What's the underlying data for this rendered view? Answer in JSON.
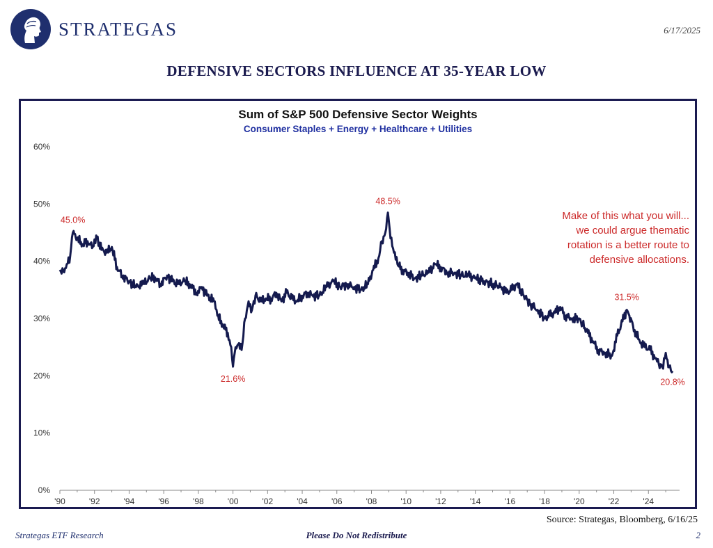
{
  "header": {
    "brand": "STRATEGAS",
    "date": "6/17/2025",
    "headline": "DEFENSIVE SECTORS INFLUENCE AT 35-YEAR LOW"
  },
  "footer": {
    "source": "Source: Strategas, Bloomberg, 6/16/25",
    "left": "Strategas ETF Research",
    "center": "Please Do Not Redistribute",
    "page": "2"
  },
  "chart_data": {
    "type": "line",
    "title": "Sum of S&P 500 Defensive Sector Weights",
    "subtitle": "Consumer Staples + Energy + Healthcare + Utilities",
    "xlabel": "",
    "ylabel": "",
    "xlim": [
      1990,
      2025.8
    ],
    "ylim": [
      0,
      60
    ],
    "x_ticks": [
      "'90",
      "'92",
      "'94",
      "'96",
      "'98",
      "'00",
      "'02",
      "'04",
      "'06",
      "'08",
      "'10",
      "'12",
      "'14",
      "'16",
      "'18",
      "'20",
      "'22",
      "'24"
    ],
    "y_ticks": [
      "0%",
      "10%",
      "20%",
      "30%",
      "40%",
      "50%",
      "60%"
    ],
    "grid": false,
    "line_color": "#141a4e",
    "annotation_color": "#cc2a2a",
    "series": [
      {
        "x": [
          1990.0,
          1990.2,
          1990.4,
          1990.6,
          1990.75,
          1991.0,
          1991.3,
          1991.6,
          1991.9,
          1992.1,
          1992.4,
          1992.7,
          1993.0,
          1993.3,
          1993.6,
          1994.0,
          1994.4,
          1994.8,
          1995.2,
          1995.5,
          1995.8,
          1996.2,
          1996.5,
          1996.8,
          1997.2,
          1997.5,
          1997.9,
          1998.2,
          1998.5,
          1998.9,
          1999.1,
          1999.4,
          1999.7,
          1999.9,
          2000.0,
          2000.1,
          2000.3,
          2000.5,
          2000.7,
          2000.9,
          2001.1,
          2001.3,
          2001.6,
          2001.9,
          2002.2,
          2002.5,
          2002.8,
          2003.1,
          2003.4,
          2003.7,
          2004.0,
          2004.3,
          2004.6,
          2005.0,
          2005.4,
          2005.8,
          2006.2,
          2006.6,
          2007.0,
          2007.4,
          2007.8,
          2008.1,
          2008.4,
          2008.6,
          2008.8,
          2008.95,
          2009.1,
          2009.3,
          2009.5,
          2009.8,
          2010.1,
          2010.5,
          2010.9,
          2011.3,
          2011.7,
          2012.0,
          2012.4,
          2012.8,
          2013.2,
          2013.6,
          2014.0,
          2014.5,
          2015.0,
          2015.5,
          2015.8,
          2016.1,
          2016.4,
          2016.8,
          2017.2,
          2017.6,
          2018.0,
          2018.3,
          2018.6,
          2018.9,
          2019.2,
          2019.6,
          2020.0,
          2020.2,
          2020.5,
          2020.8,
          2021.1,
          2021.5,
          2021.9,
          2022.2,
          2022.5,
          2022.75,
          2022.9,
          2023.2,
          2023.5,
          2023.8,
          2024.1,
          2024.4,
          2024.6,
          2024.8,
          2025.0,
          2025.2,
          2025.4
        ],
        "y": [
          38.5,
          38.2,
          39.5,
          41.0,
          45.0,
          44.0,
          43.0,
          43.5,
          42.5,
          44.5,
          42.0,
          41.5,
          42.5,
          39.0,
          37.5,
          36.5,
          35.5,
          36.0,
          37.0,
          37.2,
          36.0,
          37.5,
          36.5,
          36.0,
          36.5,
          36.0,
          34.5,
          35.5,
          34.0,
          33.0,
          30.5,
          29.0,
          27.5,
          25.0,
          21.6,
          24.0,
          25.5,
          24.5,
          30.0,
          33.0,
          31.5,
          34.0,
          33.0,
          33.5,
          33.5,
          34.5,
          33.0,
          34.5,
          33.5,
          33.0,
          34.0,
          34.5,
          34.0,
          34.0,
          35.5,
          36.5,
          35.5,
          36.0,
          35.5,
          35.0,
          36.0,
          38.5,
          40.5,
          43.5,
          45.0,
          48.5,
          44.0,
          41.5,
          39.5,
          38.5,
          38.0,
          37.0,
          37.5,
          38.0,
          39.5,
          39.0,
          38.0,
          38.0,
          37.5,
          37.5,
          37.0,
          36.5,
          36.0,
          35.5,
          34.5,
          35.0,
          36.0,
          34.0,
          32.5,
          31.5,
          30.0,
          30.5,
          31.0,
          32.0,
          30.5,
          30.0,
          30.0,
          29.0,
          27.5,
          26.0,
          24.5,
          24.0,
          23.5,
          27.0,
          29.5,
          31.5,
          30.5,
          28.0,
          26.0,
          25.0,
          24.5,
          23.0,
          22.0,
          21.5,
          24.0,
          21.5,
          20.8
        ]
      }
    ],
    "annotations": [
      {
        "label": "45.0%",
        "x": 1990.75,
        "y": 45.0
      },
      {
        "label": "21.6%",
        "x": 2000.0,
        "y": 21.6
      },
      {
        "label": "48.5%",
        "x": 2008.95,
        "y": 48.5
      },
      {
        "label": "31.5%",
        "x": 2022.75,
        "y": 31.5
      },
      {
        "label": "20.8%",
        "x": 2025.4,
        "y": 20.8
      }
    ],
    "note": [
      "Make of this what you will...",
      "we could argue thematic",
      "rotation is a better route to",
      "defensive allocations."
    ]
  }
}
